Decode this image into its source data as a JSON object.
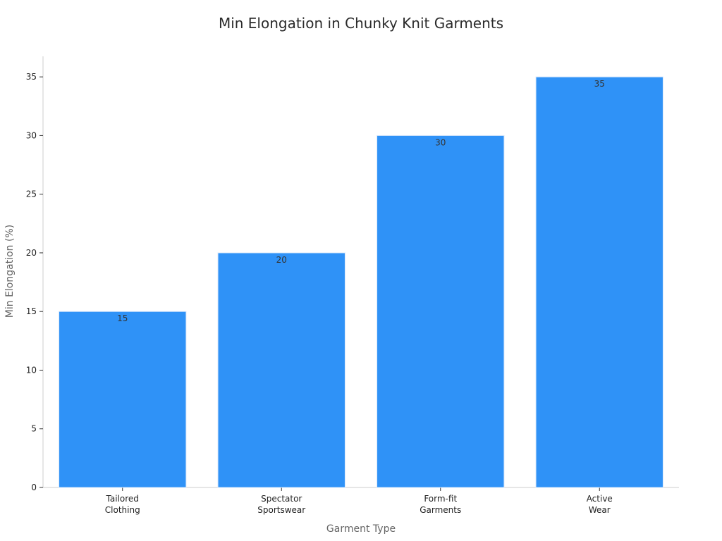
{
  "chart_data": {
    "type": "bar",
    "title": "Min Elongation in Chunky Knit Garments",
    "xlabel": "Garment Type",
    "ylabel": "Min Elongation (%)",
    "categories": [
      [
        "Tailored",
        "Clothing"
      ],
      [
        "Spectator",
        "Sportswear"
      ],
      [
        "Form-fit",
        "Garments"
      ],
      [
        "Active",
        "Wear"
      ]
    ],
    "values": [
      15,
      20,
      30,
      35
    ],
    "ylim": [
      0,
      36.75
    ],
    "yticks": [
      0,
      5,
      10,
      15,
      20,
      25,
      30,
      35
    ],
    "grid": false,
    "legend": "none",
    "colors": {
      "bar": "#2f92f7",
      "bar_edge": "#d8e8fb"
    }
  }
}
